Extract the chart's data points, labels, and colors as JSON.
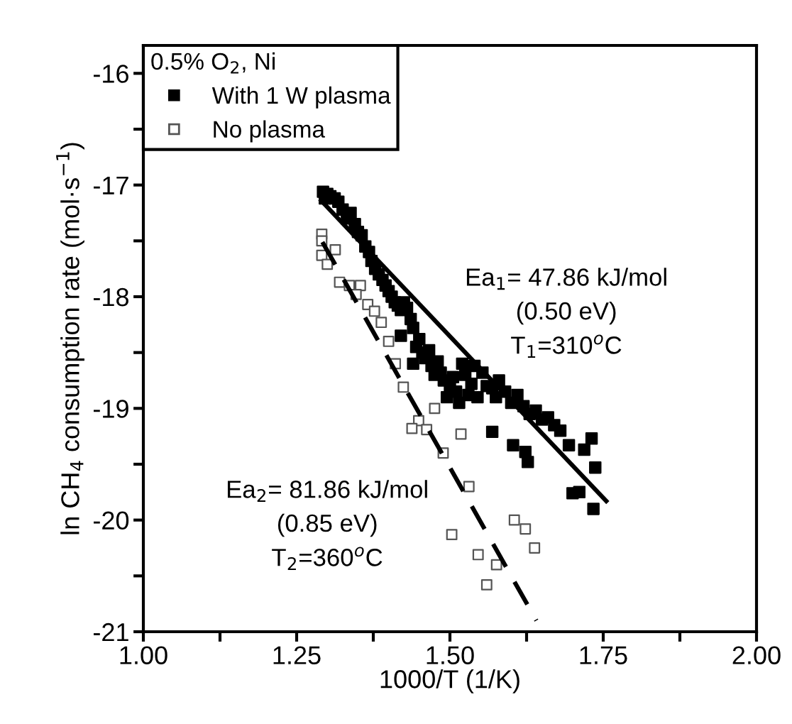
{
  "chart_data": {
    "type": "scatter",
    "xlabel": "1000/T (1/K)",
    "ylabel": "ln CH$_{4}$ consumption rate (mol·s$^{−1}$)",
    "legend_title": "0.5% O$_{2}$, Ni",
    "legend": "top left",
    "xlim": [
      1.0,
      2.0
    ],
    "ylim": [
      -21,
      -15.75
    ],
    "xticks": [
      {
        "value": 1.0,
        "label": "1.00"
      },
      {
        "value": 1.125,
        "label": null
      },
      {
        "value": 1.25,
        "label": "1.25"
      },
      {
        "value": 1.375,
        "label": null
      },
      {
        "value": 1.5,
        "label": "1.50"
      },
      {
        "value": 1.625,
        "label": null
      },
      {
        "value": 1.75,
        "label": "1.75"
      },
      {
        "value": 1.875,
        "label": null
      },
      {
        "value": 2.0,
        "label": "2.00"
      }
    ],
    "yticks": [
      {
        "value": -21,
        "label": "-21"
      },
      {
        "value": -20.5,
        "label": null
      },
      {
        "value": -20,
        "label": "-20"
      },
      {
        "value": -19.5,
        "label": null
      },
      {
        "value": -19,
        "label": "-19"
      },
      {
        "value": -18.5,
        "label": null
      },
      {
        "value": -18,
        "label": "-18"
      },
      {
        "value": -17.5,
        "label": null
      },
      {
        "value": -17,
        "label": "-17"
      },
      {
        "value": -16.5,
        "label": null
      },
      {
        "value": -16,
        "label": "-16"
      }
    ],
    "grid": false,
    "series": [
      {
        "name": "With 1 W plasma",
        "marker": "square",
        "color": "#000000",
        "x": [
          1.293,
          1.3,
          1.305,
          1.312,
          1.318,
          1.296,
          1.325,
          1.332,
          1.338,
          1.345,
          1.35,
          1.356,
          1.362,
          1.368,
          1.372,
          1.378,
          1.384,
          1.39,
          1.395,
          1.4,
          1.405,
          1.41,
          1.415,
          1.42,
          1.425,
          1.43,
          1.436,
          1.44,
          1.445,
          1.45,
          1.455,
          1.46,
          1.466,
          1.47,
          1.475,
          1.48,
          1.485,
          1.49,
          1.495,
          1.5,
          1.505,
          1.51,
          1.515,
          1.52,
          1.525,
          1.53,
          1.535,
          1.54,
          1.545,
          1.553,
          1.56,
          1.569,
          1.575,
          1.58,
          1.59,
          1.6,
          1.61,
          1.62,
          1.63,
          1.64,
          1.65,
          1.66,
          1.67,
          1.68,
          1.569,
          1.603,
          1.623,
          1.627,
          1.694,
          1.719,
          1.731,
          1.737,
          1.7,
          1.711,
          1.734,
          1.44,
          1.42
        ],
        "values": [
          -17.06,
          -17.08,
          -17.1,
          -17.12,
          -17.15,
          -17.12,
          -17.22,
          -17.3,
          -17.25,
          -17.35,
          -17.42,
          -17.45,
          -17.55,
          -17.6,
          -17.68,
          -17.75,
          -17.8,
          -17.85,
          -17.9,
          -17.95,
          -18.0,
          -18.05,
          -18.08,
          -18.12,
          -18.05,
          -18.1,
          -18.2,
          -18.28,
          -18.45,
          -18.38,
          -18.5,
          -18.55,
          -18.48,
          -18.62,
          -18.7,
          -18.58,
          -18.68,
          -18.75,
          -18.9,
          -18.8,
          -18.72,
          -18.85,
          -18.95,
          -18.6,
          -18.7,
          -18.88,
          -18.78,
          -18.62,
          -18.9,
          -18.68,
          -18.8,
          -18.82,
          -18.9,
          -18.75,
          -18.85,
          -18.95,
          -18.88,
          -18.98,
          -19.05,
          -19.02,
          -19.1,
          -19.08,
          -19.15,
          -19.2,
          -19.21,
          -19.33,
          -19.39,
          -19.48,
          -19.33,
          -19.37,
          -19.27,
          -19.53,
          -19.76,
          -19.75,
          -19.9,
          -18.6,
          -18.35
        ]
      },
      {
        "name": "No plasma",
        "marker": "square",
        "color": "#555555",
        "x": [
          1.291,
          1.291,
          1.313,
          1.291,
          1.3,
          1.32,
          1.336,
          1.354,
          1.347,
          1.366,
          1.377,
          1.388,
          1.4,
          1.411,
          1.424,
          1.475,
          1.449,
          1.438,
          1.462,
          1.518,
          1.489,
          1.531,
          1.605,
          1.623,
          1.503,
          1.638,
          1.546,
          1.576,
          1.56
        ],
        "values": [
          -17.44,
          -17.5,
          -17.58,
          -17.63,
          -17.71,
          -17.87,
          -17.9,
          -17.9,
          -17.98,
          -18.07,
          -18.13,
          -18.23,
          -18.4,
          -18.6,
          -18.81,
          -19.0,
          -19.11,
          -19.18,
          -19.19,
          -19.23,
          -19.4,
          -19.7,
          -20.0,
          -20.08,
          -20.13,
          -20.25,
          -20.31,
          -20.4,
          -20.58
        ]
      },
      {
        "type": "line",
        "line_style": "solid",
        "color": "#000000",
        "x": [
          1.29,
          1.755
        ],
        "values": [
          -17.14,
          -19.83
        ]
      },
      {
        "type": "line",
        "line_style": "dashed",
        "color": "#000000",
        "x": [
          1.292,
          1.641
        ],
        "values": [
          -17.51,
          -20.9
        ]
      }
    ],
    "annotations": [
      "Ea$_{1}$= 47.86 kJ/mol\n(0.50 eV)\nT$_{1}$=310$^{o}$C",
      "Ea$_{2}$= 81.86 kJ/mol\n(0.85 eV)\nT$_{2}$=360$^{o}$C"
    ]
  }
}
